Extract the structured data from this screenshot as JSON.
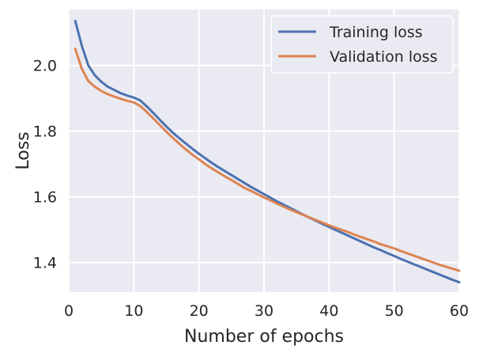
{
  "chart_data": {
    "type": "line",
    "xlabel": "Number of epochs",
    "ylabel": "Loss",
    "xlim": [
      0,
      60
    ],
    "ylim": [
      1.31,
      2.17
    ],
    "xticks": [
      0,
      10,
      20,
      30,
      40,
      50,
      60
    ],
    "yticks": [
      1.4,
      1.6,
      1.8,
      2.0
    ],
    "xtick_labels": [
      "0",
      "10",
      "20",
      "30",
      "40",
      "50",
      "60"
    ],
    "ytick_labels": [
      "1.4",
      "1.6",
      "1.8",
      "2.0"
    ],
    "grid": true,
    "legend_position": "top-right",
    "x": [
      1,
      2,
      3,
      4,
      5,
      6,
      7,
      8,
      9,
      10,
      11,
      12,
      13,
      14,
      15,
      16,
      17,
      18,
      19,
      20,
      21,
      22,
      23,
      24,
      25,
      26,
      27,
      28,
      29,
      30,
      31,
      32,
      33,
      34,
      35,
      36,
      37,
      38,
      39,
      40,
      41,
      42,
      43,
      44,
      45,
      46,
      47,
      48,
      49,
      50,
      51,
      52,
      53,
      54,
      55,
      56,
      57,
      58,
      59,
      60
    ],
    "series": [
      {
        "name": "Training loss",
        "color": "#4c72b0",
        "values": [
          2.135,
          2.06,
          2.0,
          1.97,
          1.95,
          1.935,
          1.925,
          1.915,
          1.908,
          1.902,
          1.893,
          1.875,
          1.855,
          1.834,
          1.814,
          1.795,
          1.778,
          1.762,
          1.746,
          1.731,
          1.717,
          1.703,
          1.69,
          1.678,
          1.666,
          1.654,
          1.642,
          1.63,
          1.619,
          1.608,
          1.597,
          1.586,
          1.576,
          1.566,
          1.556,
          1.546,
          1.536,
          1.527,
          1.517,
          1.508,
          1.499,
          1.49,
          1.481,
          1.472,
          1.463,
          1.454,
          1.445,
          1.437,
          1.428,
          1.42,
          1.411,
          1.403,
          1.395,
          1.387,
          1.379,
          1.371,
          1.363,
          1.355,
          1.347,
          1.34
        ]
      },
      {
        "name": "Validation loss",
        "color": "#dd8452",
        "values": [
          2.05,
          1.99,
          1.952,
          1.935,
          1.922,
          1.912,
          1.905,
          1.898,
          1.892,
          1.887,
          1.876,
          1.858,
          1.838,
          1.818,
          1.798,
          1.779,
          1.761,
          1.744,
          1.728,
          1.714,
          1.699,
          1.686,
          1.674,
          1.662,
          1.651,
          1.639,
          1.627,
          1.618,
          1.608,
          1.598,
          1.589,
          1.579,
          1.57,
          1.561,
          1.553,
          1.545,
          1.537,
          1.529,
          1.521,
          1.513,
          1.506,
          1.499,
          1.492,
          1.484,
          1.477,
          1.47,
          1.463,
          1.455,
          1.449,
          1.443,
          1.435,
          1.428,
          1.421,
          1.414,
          1.407,
          1.4,
          1.393,
          1.387,
          1.381,
          1.375
        ]
      }
    ]
  }
}
